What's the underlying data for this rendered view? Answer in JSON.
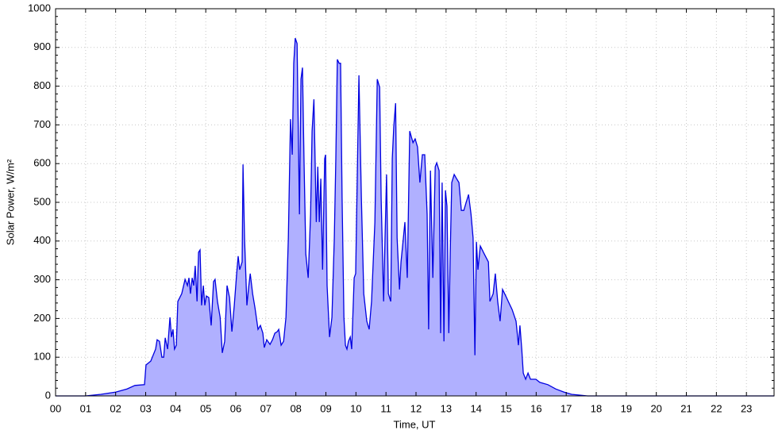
{
  "chart_data": {
    "type": "area",
    "xlabel": "Time, UT",
    "ylabel": "Solar Power, W/m²",
    "color": "#0000e0",
    "fill_color": "#b0b0ff",
    "grid": true,
    "xlim": [
      0,
      23.92
    ],
    "ylim": [
      0,
      1000
    ],
    "xticks": [
      {
        "value": 0,
        "label": "00"
      },
      {
        "value": 1,
        "label": "01"
      },
      {
        "value": 2,
        "label": "02"
      },
      {
        "value": 3,
        "label": "03"
      },
      {
        "value": 4,
        "label": "04"
      },
      {
        "value": 5,
        "label": "05"
      },
      {
        "value": 6,
        "label": "06"
      },
      {
        "value": 7,
        "label": "07"
      },
      {
        "value": 8,
        "label": "08"
      },
      {
        "value": 9,
        "label": "09"
      },
      {
        "value": 10,
        "label": "10"
      },
      {
        "value": 11,
        "label": "11"
      },
      {
        "value": 12,
        "label": "12"
      },
      {
        "value": 13,
        "label": "13"
      },
      {
        "value": 14,
        "label": "14"
      },
      {
        "value": 15,
        "label": "15"
      },
      {
        "value": 16,
        "label": "16"
      },
      {
        "value": 17,
        "label": "17"
      },
      {
        "value": 18,
        "label": "18"
      },
      {
        "value": 19,
        "label": "19"
      },
      {
        "value": 20,
        "label": "20"
      },
      {
        "value": 21,
        "label": "21"
      },
      {
        "value": 22,
        "label": "22"
      },
      {
        "value": 23,
        "label": "23"
      }
    ],
    "yticks": [
      0,
      100,
      200,
      300,
      400,
      500,
      600,
      700,
      800,
      900,
      1000
    ],
    "x": [
      0,
      1.0,
      1.51,
      2.01,
      2.38,
      2.64,
      2.96,
      3.01,
      3.17,
      3.33,
      3.38,
      3.46,
      3.54,
      3.6,
      3.65,
      3.73,
      3.81,
      3.86,
      3.91,
      3.96,
      4.02,
      4.07,
      4.2,
      4.31,
      4.39,
      4.44,
      4.49,
      4.55,
      4.6,
      4.65,
      4.71,
      4.76,
      4.81,
      4.86,
      4.92,
      4.97,
      5.02,
      5.1,
      5.18,
      5.26,
      5.31,
      5.39,
      5.48,
      5.55,
      5.63,
      5.71,
      5.79,
      5.87,
      5.95,
      6.03,
      6.08,
      6.13,
      6.21,
      6.24,
      6.29,
      6.37,
      6.42,
      6.48,
      6.56,
      6.64,
      6.74,
      6.82,
      6.9,
      6.95,
      7.03,
      7.14,
      7.22,
      7.3,
      7.38,
      7.43,
      7.51,
      7.59,
      7.67,
      7.75,
      7.82,
      7.88,
      7.93,
      7.98,
      8.04,
      8.12,
      8.17,
      8.22,
      8.27,
      8.33,
      8.41,
      8.49,
      8.54,
      8.6,
      8.68,
      8.73,
      8.78,
      8.83,
      8.89,
      8.96,
      8.99,
      9.04,
      9.12,
      9.2,
      9.28,
      9.33,
      9.38,
      9.44,
      9.49,
      9.54,
      9.6,
      9.65,
      9.7,
      9.75,
      9.81,
      9.86,
      9.94,
      9.99,
      10.1,
      10.18,
      10.26,
      10.36,
      10.44,
      10.52,
      10.63,
      10.71,
      10.79,
      10.84,
      10.92,
      10.97,
      11.02,
      11.08,
      11.16,
      11.21,
      11.26,
      11.32,
      11.37,
      11.45,
      11.5,
      11.58,
      11.63,
      11.71,
      11.79,
      11.9,
      11.97,
      12.05,
      12.13,
      12.21,
      12.29,
      12.37,
      12.42,
      12.48,
      12.56,
      12.64,
      12.69,
      12.77,
      12.82,
      12.87,
      12.93,
      12.98,
      13.03,
      13.09,
      13.14,
      13.19,
      13.27,
      13.35,
      13.43,
      13.51,
      13.59,
      13.67,
      13.75,
      13.83,
      13.9,
      13.96,
      14.01,
      14.06,
      14.14,
      14.27,
      14.41,
      14.46,
      14.57,
      14.64,
      14.72,
      14.8,
      14.88,
      14.99,
      15.07,
      15.2,
      15.33,
      15.41,
      15.46,
      15.52,
      15.57,
      15.65,
      15.73,
      15.81,
      15.99,
      16.12,
      16.39,
      16.65,
      16.92,
      17.18,
      17.45,
      17.71,
      23.92
    ],
    "values": [
      0,
      0,
      4,
      10,
      18,
      27,
      29,
      80,
      90,
      121,
      145,
      141,
      100,
      100,
      150,
      121,
      203,
      152,
      172,
      121,
      131,
      244,
      264,
      301,
      285,
      305,
      264,
      305,
      285,
      336,
      244,
      371,
      377,
      234,
      285,
      234,
      258,
      254,
      182,
      295,
      301,
      244,
      203,
      111,
      141,
      285,
      254,
      166,
      234,
      316,
      361,
      326,
      346,
      598,
      408,
      234,
      275,
      316,
      264,
      227,
      172,
      182,
      162,
      125,
      145,
      133,
      145,
      162,
      166,
      172,
      131,
      141,
      203,
      408,
      715,
      623,
      859,
      924,
      910,
      469,
      818,
      848,
      613,
      367,
      305,
      469,
      684,
      766,
      449,
      592,
      449,
      561,
      326,
      613,
      623,
      285,
      152,
      203,
      408,
      613,
      869,
      859,
      859,
      510,
      203,
      131,
      121,
      141,
      152,
      121,
      305,
      316,
      828,
      510,
      264,
      193,
      172,
      244,
      449,
      818,
      797,
      510,
      244,
      408,
      572,
      264,
      244,
      613,
      695,
      756,
      408,
      275,
      346,
      408,
      449,
      305,
      684,
      654,
      664,
      643,
      551,
      623,
      623,
      469,
      172,
      582,
      305,
      592,
      602,
      582,
      162,
      551,
      141,
      531,
      490,
      162,
      367,
      551,
      572,
      561,
      551,
      479,
      479,
      500,
      520,
      469,
      408,
      105,
      398,
      326,
      387,
      367,
      346,
      244,
      264,
      316,
      244,
      193,
      275,
      258,
      244,
      223,
      193,
      131,
      182,
      121,
      59,
      43,
      59,
      43,
      43,
      35,
      29,
      18,
      10,
      4,
      2,
      0,
      0
    ]
  }
}
